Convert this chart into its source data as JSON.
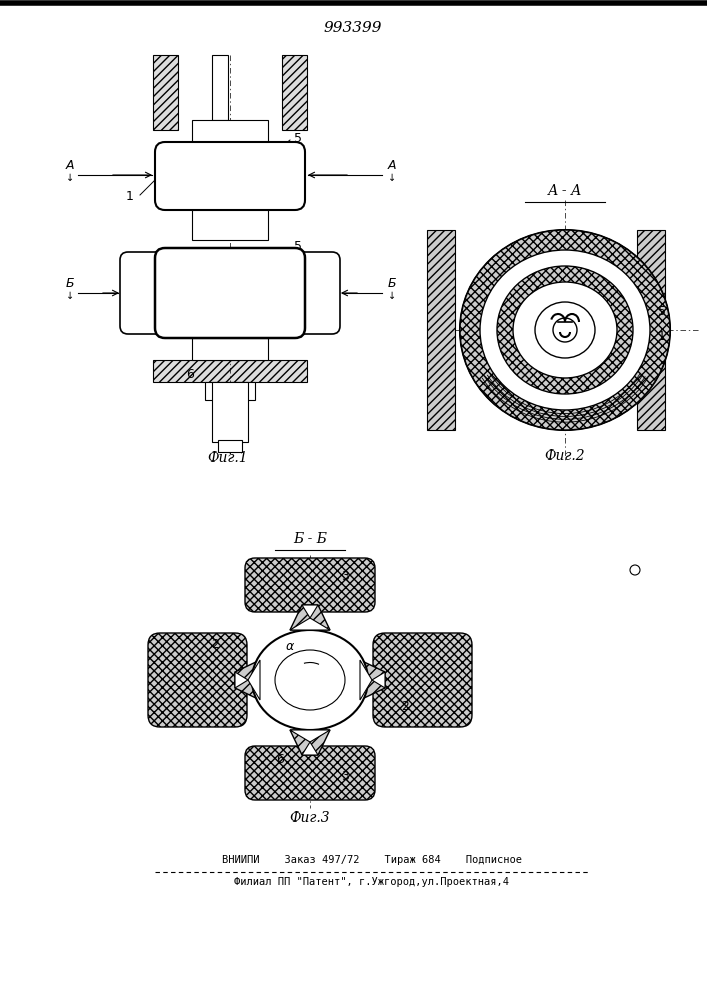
{
  "patent_number": "993399",
  "bg_color": "#ffffff",
  "line_color": "#000000",
  "footer_line1": "ВНИИПИ    Заказ 497/72    Тираж 684    Подписное",
  "footer_line2": "Филиал ПП  \"Патент\", г.Ужгород,ул.Проектная,4",
  "fig1_label": "Фиг.1",
  "fig2_label": "Фиг.2",
  "fig3_label": "Фиг.3",
  "section_aa": "А - А",
  "section_bb": "Б - Б"
}
